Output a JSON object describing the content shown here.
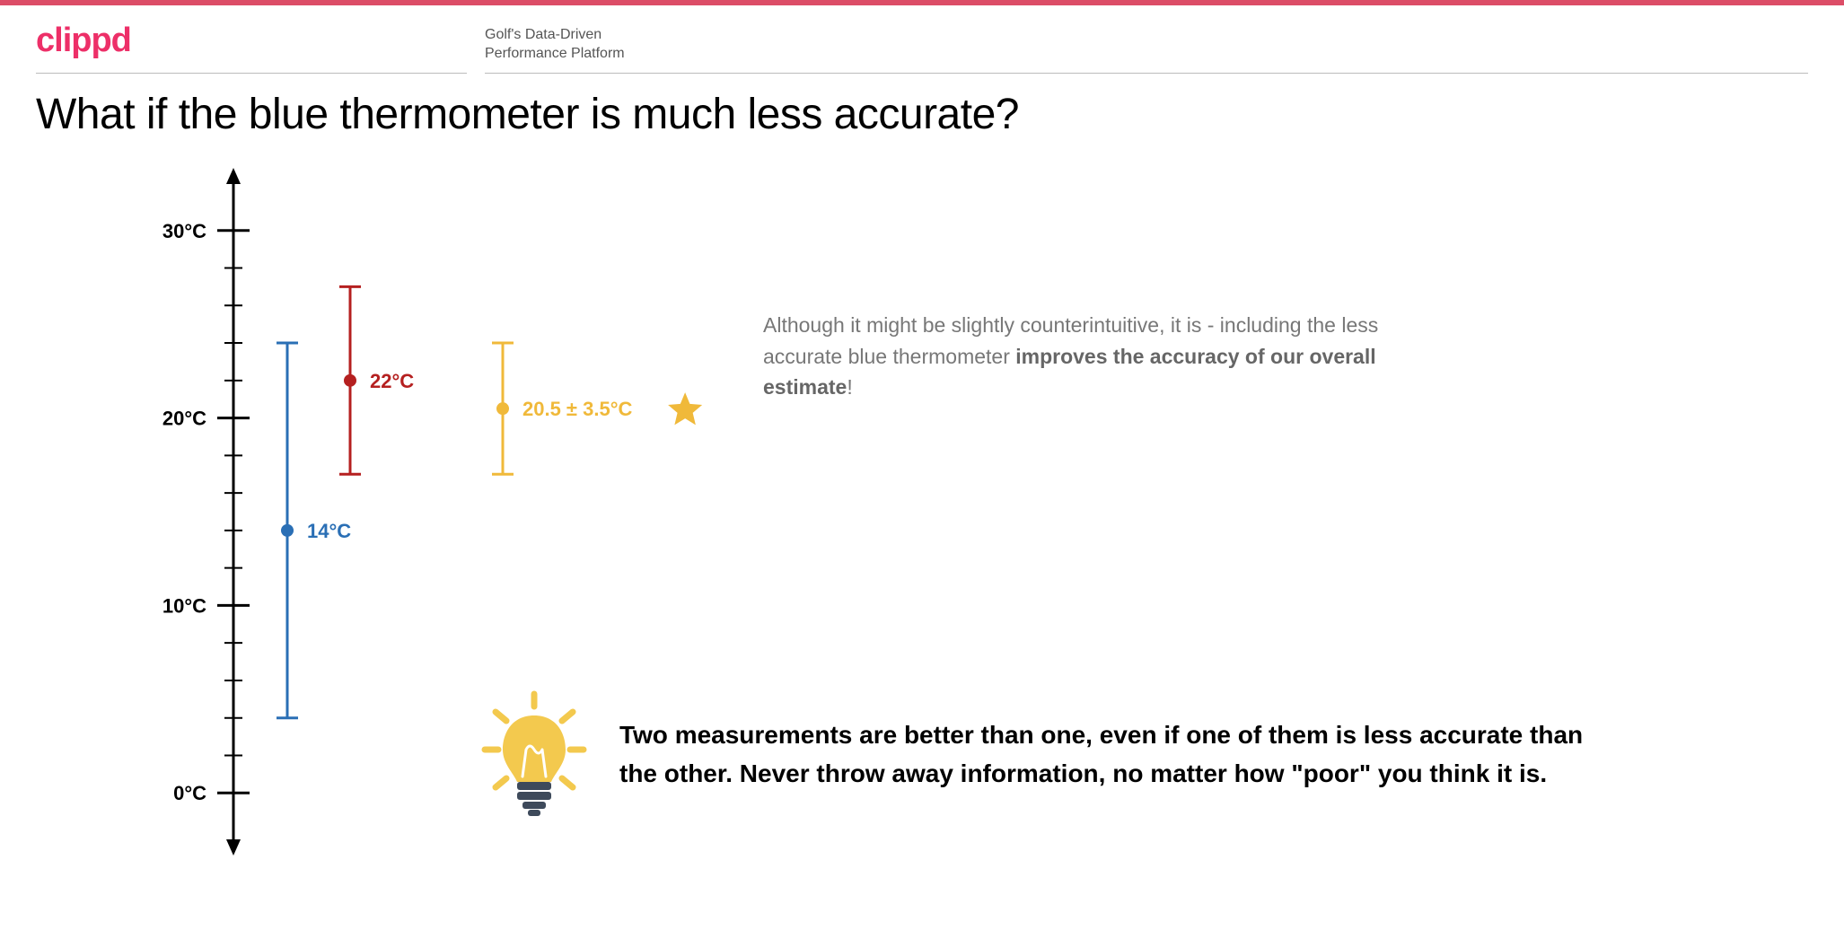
{
  "page": {
    "accent_color": "#dc4d67",
    "background": "#ffffff"
  },
  "header": {
    "logo_text": "clippd",
    "logo_color": "#ed2f68",
    "tagline_line1": "Golf's Data-Driven",
    "tagline_line2": "Performance Platform"
  },
  "title": "What if the blue thermometer is much less accurate?",
  "chart": {
    "type": "errorbar",
    "axis_color": "#000000",
    "axis_stroke_width": 3,
    "yaxis": {
      "min": -2,
      "max": 32,
      "major_ticks": [
        0,
        10,
        20,
        30
      ],
      "major_labels": [
        "0°C",
        "10°C",
        "20°C",
        "30°C"
      ],
      "minor_step": 2,
      "label_fontsize": 22,
      "label_fontweight": 700
    },
    "series": [
      {
        "name": "blue",
        "color": "#2a6fb5",
        "x_offset": 60,
        "value": 14,
        "err_low": 4,
        "err_high": 24,
        "label": "14°C",
        "label_fontsize": 22,
        "stroke_width": 3,
        "cap_width": 24,
        "dot_r": 7
      },
      {
        "name": "red",
        "color": "#b52020",
        "x_offset": 130,
        "value": 22,
        "err_low": 17,
        "err_high": 27,
        "label": "22°C",
        "label_fontsize": 22,
        "stroke_width": 3,
        "cap_width": 24,
        "dot_r": 7
      },
      {
        "name": "yellow",
        "color": "#f0b93a",
        "x_offset": 300,
        "value": 20.5,
        "err_low": 17,
        "err_high": 24,
        "label": "20.5 ± 3.5°C",
        "label_fontsize": 22,
        "stroke_width": 3,
        "cap_width": 24,
        "dot_r": 7,
        "star": true
      }
    ],
    "star_color": "#f0b93a"
  },
  "note": {
    "pre": "Although it might be slightly counterintuitive, it is - including the less accurate blue thermometer ",
    "bold": "improves the accuracy of our overall estimate",
    "post": "!"
  },
  "insight": "Two measurements are better than one, even if one of them is less accurate than the other. Never throw away information, no matter how \"poor\" you think it is.",
  "icons": {
    "bulb_yellow": "#f3c94e",
    "bulb_base": "#3e4a5b"
  }
}
